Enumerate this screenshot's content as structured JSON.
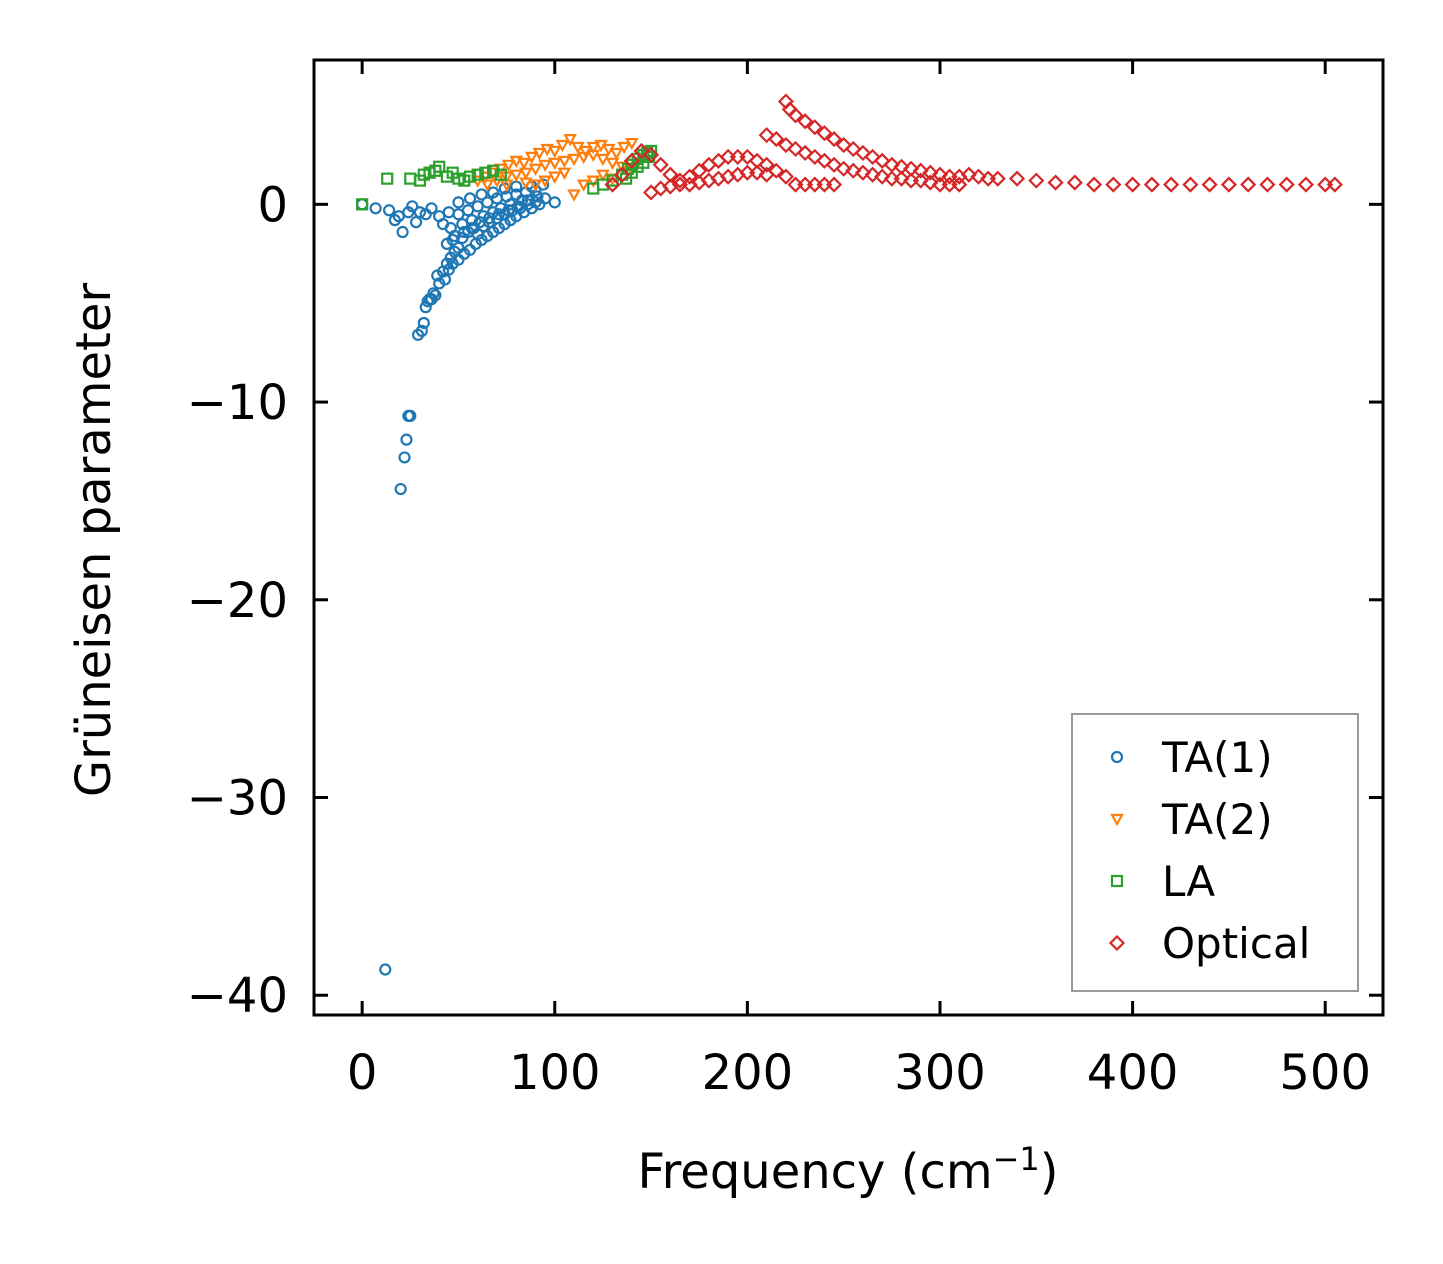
{
  "chart_data": {
    "type": "scatter",
    "title": "",
    "xlabel": "Frequency (cm",
    "xlabel_sup": "−1",
    "xlabel_suffix": ")",
    "ylabel": "Grüneisen parameter",
    "xlim": [
      -25,
      530
    ],
    "ylim": [
      -41,
      7.3
    ],
    "xticks": [
      0,
      100,
      200,
      300,
      400,
      500
    ],
    "xtick_labels": [
      "0",
      "100",
      "200",
      "300",
      "400",
      "500"
    ],
    "yticks": [
      0,
      -10,
      -20,
      -30,
      -40
    ],
    "ytick_labels": [
      "0",
      "−10",
      "−20",
      "−30",
      "−40"
    ],
    "grid": false,
    "legend_position": "lower-right",
    "series": [
      {
        "name": "TA(1)",
        "marker": "circle",
        "color": "#1f77b4",
        "points": [
          [
            12,
            -38.7
          ],
          [
            20,
            -14.4
          ],
          [
            22,
            -12.8
          ],
          [
            23,
            -11.9
          ],
          [
            24,
            -10.7
          ],
          [
            25,
            -10.7
          ],
          [
            0,
            0
          ],
          [
            7,
            -0.2
          ],
          [
            14,
            -0.3
          ],
          [
            17,
            -0.8
          ],
          [
            19,
            -0.6
          ],
          [
            21,
            -1.4
          ],
          [
            24,
            -0.4
          ],
          [
            26,
            -0.1
          ],
          [
            28,
            -0.9
          ],
          [
            30,
            -0.4
          ],
          [
            33,
            -0.5
          ],
          [
            36,
            -0.2
          ],
          [
            29,
            -6.6
          ],
          [
            31,
            -6.4
          ],
          [
            32,
            -6.0
          ],
          [
            33,
            -5.2
          ],
          [
            34,
            -4.9
          ],
          [
            36,
            -4.8
          ],
          [
            38,
            -4.6
          ],
          [
            40,
            -4.0
          ],
          [
            39,
            -3.6
          ],
          [
            42,
            -3.4
          ],
          [
            44,
            -3.0
          ],
          [
            46,
            -2.7
          ],
          [
            48,
            -2.4
          ],
          [
            50,
            -2.2
          ],
          [
            44,
            -2.0
          ],
          [
            47,
            -1.8
          ],
          [
            52,
            -1.7
          ],
          [
            55,
            -1.4
          ],
          [
            58,
            -1.2
          ],
          [
            60,
            -1.5
          ],
          [
            63,
            -1.1
          ],
          [
            66,
            -0.9
          ],
          [
            70,
            -0.7
          ],
          [
            74,
            -0.5
          ],
          [
            78,
            -0.3
          ],
          [
            82,
            -0.2
          ],
          [
            86,
            0.0
          ],
          [
            90,
            0.1
          ],
          [
            95,
            0.3
          ],
          [
            100,
            0.1
          ],
          [
            50,
            -0.5
          ],
          [
            55,
            -0.3
          ],
          [
            60,
            -0.1
          ],
          [
            65,
            0.1
          ],
          [
            70,
            0.3
          ],
          [
            75,
            0.4
          ],
          [
            80,
            0.5
          ],
          [
            85,
            0.6
          ],
          [
            90,
            0.7
          ],
          [
            40,
            -0.6
          ],
          [
            45,
            -0.4
          ],
          [
            50,
            0.1
          ],
          [
            56,
            0.3
          ],
          [
            62,
            0.5
          ],
          [
            68,
            0.6
          ],
          [
            74,
            0.8
          ],
          [
            80,
            0.9
          ],
          [
            88,
            0.9
          ],
          [
            94,
            1.0
          ],
          [
            42,
            -1.0
          ],
          [
            46,
            -1.2
          ],
          [
            52,
            -1.0
          ],
          [
            57,
            -0.8
          ],
          [
            63,
            -0.6
          ],
          [
            68,
            -0.4
          ],
          [
            72,
            -0.2
          ],
          [
            77,
            0.0
          ],
          [
            83,
            0.2
          ],
          [
            50,
            -2.8
          ],
          [
            53,
            -2.5
          ],
          [
            56,
            -2.3
          ],
          [
            59,
            -2.0
          ],
          [
            62,
            -1.8
          ],
          [
            65,
            -1.6
          ],
          [
            68,
            -1.4
          ],
          [
            71,
            -1.2
          ],
          [
            74,
            -1.0
          ],
          [
            77,
            -0.8
          ],
          [
            80,
            -0.6
          ],
          [
            84,
            -0.4
          ],
          [
            88,
            -0.2
          ],
          [
            92,
            0.0
          ],
          [
            48,
            -1.6
          ],
          [
            53,
            -1.4
          ],
          [
            57,
            -1.2
          ],
          [
            61,
            -0.9
          ],
          [
            66,
            -0.7
          ],
          [
            71,
            -0.5
          ],
          [
            76,
            -0.3
          ],
          [
            81,
            -0.1
          ],
          [
            86,
            0.2
          ],
          [
            91,
            0.4
          ],
          [
            35,
            -4.8
          ],
          [
            37,
            -4.5
          ],
          [
            43,
            -3.8
          ],
          [
            45,
            -3.3
          ],
          [
            47,
            -3.0
          ]
        ]
      },
      {
        "name": "TA(2)",
        "marker": "triangle-down",
        "color": "#ff7f0e",
        "points": [
          [
            60,
            1.2
          ],
          [
            64,
            1.4
          ],
          [
            68,
            1.6
          ],
          [
            72,
            1.8
          ],
          [
            76,
            2.0
          ],
          [
            80,
            2.2
          ],
          [
            84,
            2.1
          ],
          [
            88,
            2.4
          ],
          [
            92,
            2.6
          ],
          [
            96,
            2.8
          ],
          [
            100,
            2.7
          ],
          [
            104,
            3.0
          ],
          [
            108,
            3.3
          ],
          [
            112,
            2.9
          ],
          [
            116,
            2.7
          ],
          [
            120,
            2.9
          ],
          [
            124,
            3.0
          ],
          [
            128,
            2.8
          ],
          [
            132,
            2.6
          ],
          [
            136,
            2.9
          ],
          [
            140,
            3.1
          ],
          [
            70,
            1.2
          ],
          [
            75,
            1.4
          ],
          [
            80,
            1.5
          ],
          [
            85,
            1.6
          ],
          [
            90,
            1.8
          ],
          [
            95,
            2.0
          ],
          [
            100,
            2.1
          ],
          [
            105,
            2.2
          ],
          [
            110,
            2.3
          ],
          [
            115,
            2.4
          ],
          [
            120,
            2.5
          ],
          [
            125,
            2.3
          ],
          [
            130,
            2.1
          ],
          [
            135,
            1.9
          ],
          [
            140,
            1.8
          ],
          [
            110,
            0.5
          ],
          [
            115,
            1.0
          ],
          [
            120,
            1.2
          ],
          [
            125,
            1.5
          ],
          [
            130,
            1.3
          ],
          [
            100,
            1.4
          ],
          [
            105,
            1.6
          ],
          [
            95,
            1.2
          ],
          [
            90,
            1.0
          ],
          [
            85,
            1.1
          ],
          [
            75,
            1.0
          ],
          [
            65,
            1.0
          ]
        ]
      },
      {
        "name": "LA",
        "marker": "square",
        "color": "#2ca02c",
        "points": [
          [
            0,
            0
          ],
          [
            13,
            1.3
          ],
          [
            25,
            1.3
          ],
          [
            30,
            1.2
          ],
          [
            32,
            1.5
          ],
          [
            35,
            1.6
          ],
          [
            38,
            1.7
          ],
          [
            40,
            1.9
          ],
          [
            44,
            1.4
          ],
          [
            47,
            1.6
          ],
          [
            50,
            1.3
          ],
          [
            53,
            1.2
          ],
          [
            56,
            1.4
          ],
          [
            60,
            1.5
          ],
          [
            64,
            1.6
          ],
          [
            68,
            1.7
          ],
          [
            72,
            1.5
          ],
          [
            120,
            0.8
          ],
          [
            125,
            1.0
          ],
          [
            130,
            1.2
          ],
          [
            135,
            1.5
          ],
          [
            138,
            1.8
          ],
          [
            140,
            2.0
          ],
          [
            143,
            2.3
          ],
          [
            146,
            2.5
          ],
          [
            148,
            2.6
          ],
          [
            150,
            2.7
          ],
          [
            137,
            1.3
          ],
          [
            140,
            1.6
          ],
          [
            143,
            1.9
          ],
          [
            146,
            2.1
          ],
          [
            149,
            2.4
          ]
        ]
      },
      {
        "name": "Optical",
        "marker": "diamond",
        "color": "#d62728",
        "points": [
          [
            130,
            1.0
          ],
          [
            135,
            1.5
          ],
          [
            140,
            2.2
          ],
          [
            145,
            2.7
          ],
          [
            150,
            2.5
          ],
          [
            155,
            2.0
          ],
          [
            160,
            1.5
          ],
          [
            165,
            1.2
          ],
          [
            170,
            1.4
          ],
          [
            175,
            1.7
          ],
          [
            180,
            2.0
          ],
          [
            185,
            2.2
          ],
          [
            190,
            2.4
          ],
          [
            195,
            2.4
          ],
          [
            200,
            2.4
          ],
          [
            205,
            2.2
          ],
          [
            210,
            2.0
          ],
          [
            215,
            1.7
          ],
          [
            220,
            1.4
          ],
          [
            225,
            1.0
          ],
          [
            230,
            1.0
          ],
          [
            235,
            1.0
          ],
          [
            240,
            1.0
          ],
          [
            245,
            1.0
          ],
          [
            220,
            5.2
          ],
          [
            222,
            4.8
          ],
          [
            225,
            4.5
          ],
          [
            230,
            4.2
          ],
          [
            235,
            3.9
          ],
          [
            240,
            3.6
          ],
          [
            245,
            3.3
          ],
          [
            250,
            3.0
          ],
          [
            255,
            2.8
          ],
          [
            260,
            2.6
          ],
          [
            265,
            2.4
          ],
          [
            270,
            2.2
          ],
          [
            275,
            2.0
          ],
          [
            280,
            1.9
          ],
          [
            285,
            1.8
          ],
          [
            290,
            1.7
          ],
          [
            295,
            1.6
          ],
          [
            300,
            1.5
          ],
          [
            305,
            1.4
          ],
          [
            310,
            1.4
          ],
          [
            315,
            1.5
          ],
          [
            320,
            1.4
          ],
          [
            325,
            1.3
          ],
          [
            330,
            1.3
          ],
          [
            340,
            1.3
          ],
          [
            350,
            1.2
          ],
          [
            360,
            1.1
          ],
          [
            370,
            1.1
          ],
          [
            380,
            1.0
          ],
          [
            390,
            1.0
          ],
          [
            400,
            1.0
          ],
          [
            410,
            1.0
          ],
          [
            420,
            1.0
          ],
          [
            430,
            1.0
          ],
          [
            440,
            1.0
          ],
          [
            450,
            1.0
          ],
          [
            460,
            1.0
          ],
          [
            470,
            1.0
          ],
          [
            480,
            1.0
          ],
          [
            490,
            1.0
          ],
          [
            500,
            1.0
          ],
          [
            505,
            1.0
          ],
          [
            210,
            3.5
          ],
          [
            215,
            3.3
          ],
          [
            220,
            3.0
          ],
          [
            225,
            2.8
          ],
          [
            230,
            2.6
          ],
          [
            235,
            2.4
          ],
          [
            240,
            2.2
          ],
          [
            245,
            2.0
          ],
          [
            250,
            1.8
          ],
          [
            255,
            1.7
          ],
          [
            260,
            1.6
          ],
          [
            265,
            1.5
          ],
          [
            270,
            1.4
          ],
          [
            275,
            1.3
          ],
          [
            280,
            1.3
          ],
          [
            285,
            1.2
          ],
          [
            290,
            1.2
          ],
          [
            295,
            1.1
          ],
          [
            300,
            1.0
          ],
          [
            305,
            1.0
          ],
          [
            310,
            1.0
          ],
          [
            150,
            0.6
          ],
          [
            155,
            0.8
          ],
          [
            160,
            0.9
          ],
          [
            165,
            1.0
          ],
          [
            170,
            1.0
          ],
          [
            175,
            1.1
          ],
          [
            180,
            1.2
          ],
          [
            185,
            1.3
          ],
          [
            190,
            1.4
          ],
          [
            195,
            1.5
          ],
          [
            200,
            1.6
          ],
          [
            205,
            1.6
          ],
          [
            210,
            1.5
          ]
        ]
      }
    ]
  }
}
